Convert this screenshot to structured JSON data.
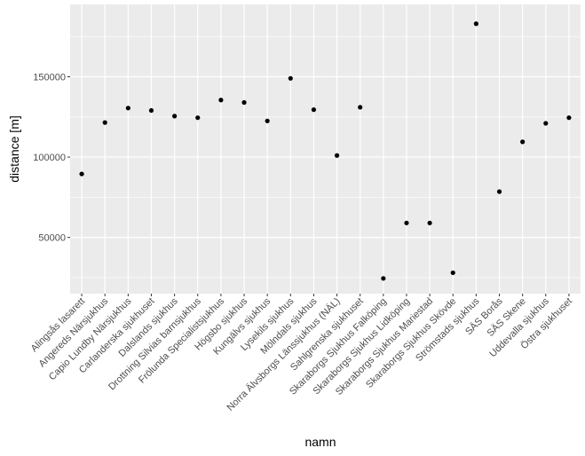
{
  "chart_data": {
    "type": "scatter",
    "title": "",
    "xlabel": "namn",
    "ylabel": "distance [m]",
    "ylim": [
      15000,
      195000
    ],
    "yticks": [
      50000,
      100000,
      150000
    ],
    "ytick_labels": [
      "50000",
      "100000",
      "150000"
    ],
    "grid": true,
    "panel_color": "#ebebeb",
    "grid_color": "#ffffff",
    "point_color": "#000000",
    "categories": [
      "Alingsås lasarett",
      "Angereds Närsjukhus",
      "Capio Lundby Närsjukhus",
      "Carlanderska sjukhuset",
      "Dalslands sjukhus",
      "Drottning Silvias barnsjukhus",
      "Frölunda Specialistsjukhus",
      "Högsbo sjukhus",
      "Kungälvs sjukhus",
      "Lysekils sjukhus",
      "Mölndals sjukhus",
      "Norra Älvsborgs Länssjukhus (NÄL)",
      "Sahlgrenska sjukhuset",
      "Skaraborgs Sjukhus Falköping",
      "Skaraborgs Sjukhus Lidköping",
      "Skaraborgs Sjukhus Mariestad",
      "Skaraborgs Sjukhus Skövde",
      "Strömstads sjukhus",
      "SÄS Borås",
      "SÄS Skene",
      "Uddevalla sjukhus",
      "Östra sjukhuset"
    ],
    "values": [
      89500,
      121500,
      130500,
      129000,
      125500,
      124500,
      135500,
      134000,
      122500,
      149000,
      129500,
      101000,
      131000,
      24500,
      59000,
      59000,
      28000,
      183000,
      78500,
      109500,
      121000,
      124500
    ]
  }
}
